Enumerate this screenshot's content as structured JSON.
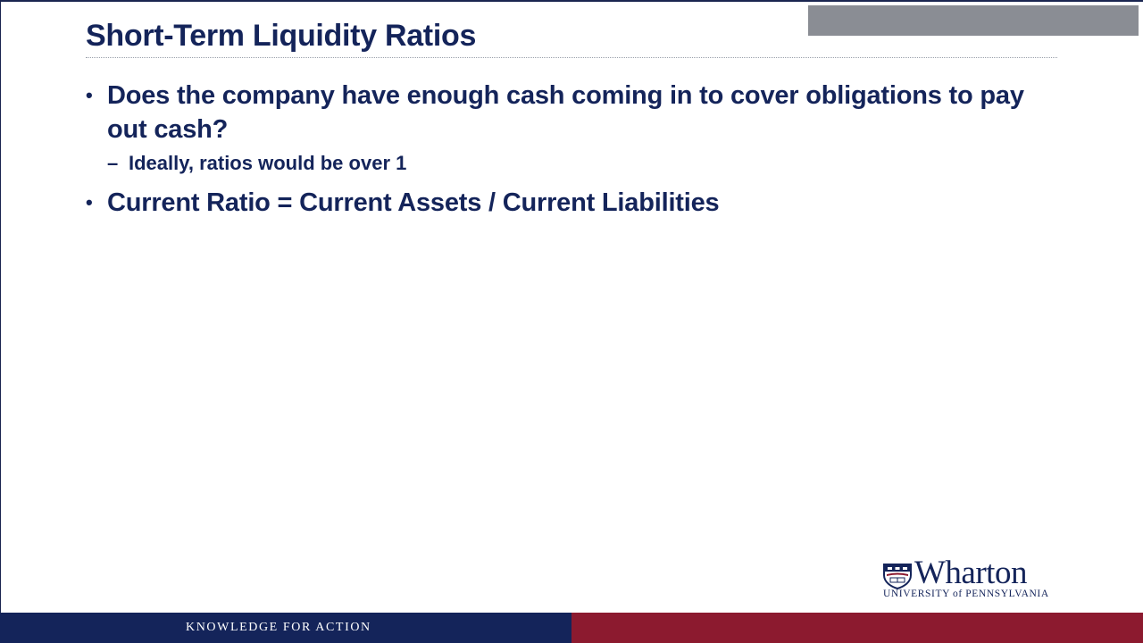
{
  "slide": {
    "title": "Short-Term Liquidity Ratios",
    "bullets": [
      {
        "text": "Does the company have enough cash coming in to cover obligations to pay out cash?",
        "sub": [
          "Ideally, ratios would be over 1"
        ]
      },
      {
        "text": "Current Ratio = Current Assets / Current Liabilities",
        "sub": []
      }
    ]
  },
  "logo": {
    "wordmark": "Wharton",
    "subline": "UNIVERSITY of PENNSYLVANIA",
    "icon": "penn-shield-icon"
  },
  "footer": {
    "tagline": "KNOWLEDGE FOR ACTION"
  },
  "colors": {
    "navy": "#14245a",
    "crimson": "#8c1a2f",
    "grey": "#8a8d94"
  }
}
